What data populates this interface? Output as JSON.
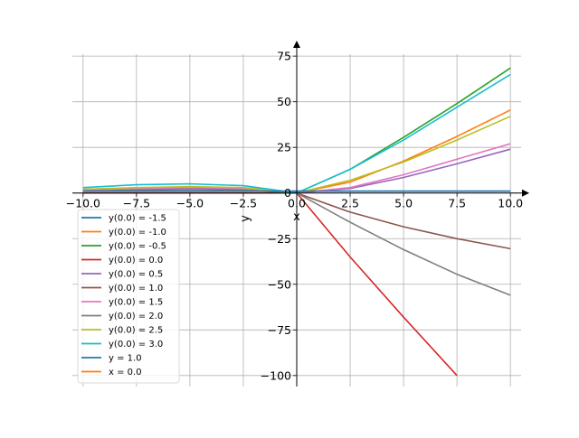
{
  "chart_data": {
    "type": "line",
    "title": "",
    "xlabel": "x",
    "ylabel": "y",
    "xlim": [
      -10.5,
      10.5
    ],
    "ylim": [
      -108,
      82
    ],
    "xticks": [
      -10.0,
      -7.5,
      -5.0,
      -2.5,
      0.0,
      2.5,
      5.0,
      7.5,
      10.0
    ],
    "yticks": [
      -100,
      -75,
      -50,
      -25,
      0,
      25,
      50,
      75
    ],
    "xtick_labels": [
      "−10.0",
      "−7.5",
      "−5.0",
      "−2.5",
      "0.0",
      "2.5",
      "5.0",
      "7.5",
      "10.0"
    ],
    "ytick_labels": [
      "−100",
      "−75",
      "−50",
      "−25",
      "0",
      "25",
      "50",
      "75"
    ],
    "grid": true,
    "legend_position": "lower-left",
    "series": [
      {
        "name": "y(0.0) = -1.5",
        "color": "#1f77b4",
        "x": [
          -10,
          -7.5,
          -5,
          -2.5,
          0,
          2.5,
          5,
          7.5,
          10
        ],
        "y": [
          1.0,
          1.0,
          1.0,
          1.0,
          1.0,
          1.0,
          1.0,
          1.0,
          1.0
        ]
      },
      {
        "name": "y(0.0) = -1.0",
        "color": "#ff7f0e",
        "x": [
          -10,
          -7.5,
          -5,
          -2.5,
          0,
          2.5,
          5,
          7.5,
          10
        ],
        "y": [
          1.5,
          2.2,
          2.8,
          2.2,
          0.0,
          6.0,
          17.5,
          31.0,
          45.5
        ]
      },
      {
        "name": "y(0.0) = -0.5",
        "color": "#2ca02c",
        "x": [
          -10,
          -7.5,
          -5,
          -2.5,
          0,
          2.5,
          5,
          7.5,
          10
        ],
        "y": [
          1.2,
          2.0,
          2.5,
          2.0,
          0.0,
          13.0,
          30.5,
          49.0,
          68.5
        ]
      },
      {
        "name": "y(0.0) = 0.0",
        "color": "#d62728",
        "x": [
          -10,
          -7.5,
          -5,
          -2.5,
          0,
          2.5,
          5,
          7.5
        ],
        "y": [
          0.0,
          0.0,
          0.0,
          0.0,
          0.0,
          -35.0,
          -68.0,
          -100.0
        ]
      },
      {
        "name": "y(0.0) = 0.5",
        "color": "#9467bd",
        "x": [
          -10,
          -7.5,
          -5,
          -2.5,
          0,
          2.5,
          5,
          7.5,
          10
        ],
        "y": [
          1.0,
          2.0,
          2.5,
          2.0,
          0.0,
          2.5,
          8.5,
          16.0,
          24.0
        ]
      },
      {
        "name": "y(0.0) = 1.0",
        "color": "#8c564b",
        "x": [
          -10,
          -7.5,
          -5,
          -2.5,
          0,
          2.5,
          5,
          7.5,
          10
        ],
        "y": [
          2.0,
          2.8,
          3.0,
          2.5,
          0.0,
          -10.5,
          -18.5,
          -25.0,
          -30.5
        ]
      },
      {
        "name": "y(0.0) = 1.5",
        "color": "#e377c2",
        "x": [
          -10,
          -7.5,
          -5,
          -2.5,
          0,
          2.5,
          5,
          7.5,
          10
        ],
        "y": [
          1.5,
          2.5,
          3.0,
          2.5,
          0.0,
          3.0,
          10.0,
          18.5,
          27.0
        ]
      },
      {
        "name": "y(0.0) = 2.0",
        "color": "#7f7f7f",
        "x": [
          -10,
          -7.5,
          -5,
          -2.5,
          0,
          2.5,
          5,
          7.5,
          10
        ],
        "y": [
          1.0,
          1.5,
          2.0,
          1.5,
          0.0,
          -16.0,
          -31.0,
          -44.5,
          -56.0
        ]
      },
      {
        "name": "y(0.0) = 2.5",
        "color": "#bcbd22",
        "x": [
          -10,
          -7.5,
          -5,
          -2.5,
          0,
          2.5,
          5,
          7.5,
          10
        ],
        "y": [
          2.0,
          3.0,
          3.5,
          3.0,
          0.0,
          7.0,
          17.0,
          29.0,
          42.0
        ]
      },
      {
        "name": "y(0.0) = 3.0",
        "color": "#17becf",
        "x": [
          -10,
          -7.5,
          -5,
          -2.5,
          0,
          2.5,
          5,
          7.5,
          10
        ],
        "y": [
          3.0,
          4.5,
          5.0,
          4.0,
          0.0,
          13.0,
          29.0,
          47.0,
          65.0
        ]
      },
      {
        "name": "y = 1.0",
        "color": "#1f77b4",
        "x": [
          -10,
          10
        ],
        "y": [
          1.0,
          1.0
        ]
      },
      {
        "name": "x = 0.0",
        "color": "#ff7f0e",
        "x": [
          0.0,
          0.0
        ],
        "y": [
          0.0,
          0.0
        ]
      }
    ]
  }
}
